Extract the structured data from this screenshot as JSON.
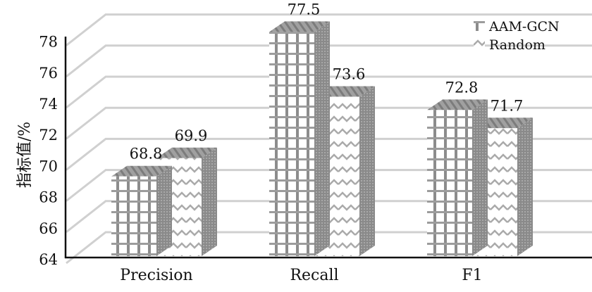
{
  "chart_data": {
    "type": "bar",
    "title": "",
    "xlabel": "",
    "ylabel": "指标值/%",
    "ylim": [
      64,
      78
    ],
    "yticks": [
      64,
      66,
      68,
      70,
      72,
      74,
      76,
      78
    ],
    "categories": [
      "Precision",
      "Recall",
      "F1"
    ],
    "series": [
      {
        "name": "AAM-GCN",
        "values": [
          68.8,
          77.5,
          72.8
        ],
        "pattern": "grid"
      },
      {
        "name": "Random",
        "values": [
          69.9,
          73.6,
          71.7
        ],
        "pattern": "wave"
      }
    ],
    "data_labels": true,
    "grid": true,
    "legend": "top-right",
    "colors": {
      "grid": "#d0d0d0",
      "bar_line": "#777777",
      "side": "#8a8a8a",
      "top": "#9a9a9a"
    }
  }
}
